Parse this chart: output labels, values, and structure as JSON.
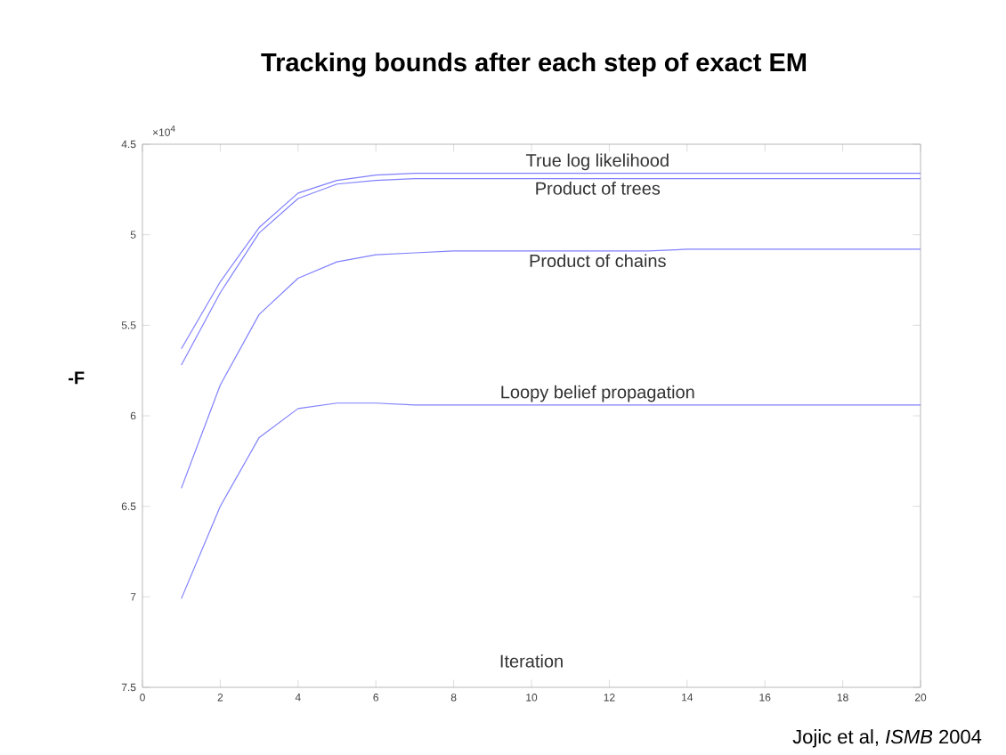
{
  "chart_data": {
    "type": "line",
    "title": "Tracking bounds after each step of exact EM",
    "xlabel": "Iteration",
    "ylabel": "-F",
    "annotations": [
      "×10$^{4}$",
      "Jojic et al, *ISMB* 2004"
    ],
    "x": [
      1,
      2,
      3,
      4,
      5,
      6,
      7,
      8,
      9,
      10,
      11,
      12,
      13,
      14,
      15,
      16,
      17,
      18,
      19,
      20
    ],
    "series": [
      {
        "name": "True log likelihood",
        "color": "#8080ff",
        "values": [
          5.63,
          5.26,
          4.96,
          4.77,
          4.7,
          4.67,
          4.66,
          4.66,
          4.66,
          4.66,
          4.66,
          4.66,
          4.66,
          4.66,
          4.66,
          4.66,
          4.66,
          4.66,
          4.66,
          4.66
        ]
      },
      {
        "name": "Product of trees",
        "color": "#8080ff",
        "values": [
          5.72,
          5.32,
          4.99,
          4.8,
          4.72,
          4.7,
          4.69,
          4.69,
          4.69,
          4.69,
          4.69,
          4.69,
          4.69,
          4.69,
          4.69,
          4.69,
          4.69,
          4.69,
          4.69,
          4.69
        ]
      },
      {
        "name": "Product of chains",
        "color": "#8080ff",
        "values": [
          6.4,
          5.83,
          5.44,
          5.24,
          5.15,
          5.11,
          5.1,
          5.09,
          5.09,
          5.09,
          5.09,
          5.09,
          5.09,
          5.08,
          5.08,
          5.08,
          5.08,
          5.08,
          5.08,
          5.08
        ]
      },
      {
        "name": "Loopy belief propagation",
        "color": "#8080ff",
        "values": [
          7.01,
          6.5,
          6.12,
          5.96,
          5.93,
          5.93,
          5.94,
          5.94,
          5.94,
          5.94,
          5.94,
          5.94,
          5.94,
          5.94,
          5.94,
          5.94,
          5.94,
          5.94,
          5.94,
          5.94
        ]
      }
    ],
    "xlim": [
      0,
      20
    ],
    "xticks": [
      0,
      2,
      4,
      6,
      8,
      10,
      12,
      14,
      16,
      18,
      20
    ],
    "ylim": [
      7.5,
      4.5
    ],
    "yticks": [
      4.5,
      5,
      5.5,
      6,
      6.5,
      7,
      7.5
    ],
    "grid": false,
    "legend": false,
    "marker": "none",
    "line_style": "solid"
  }
}
